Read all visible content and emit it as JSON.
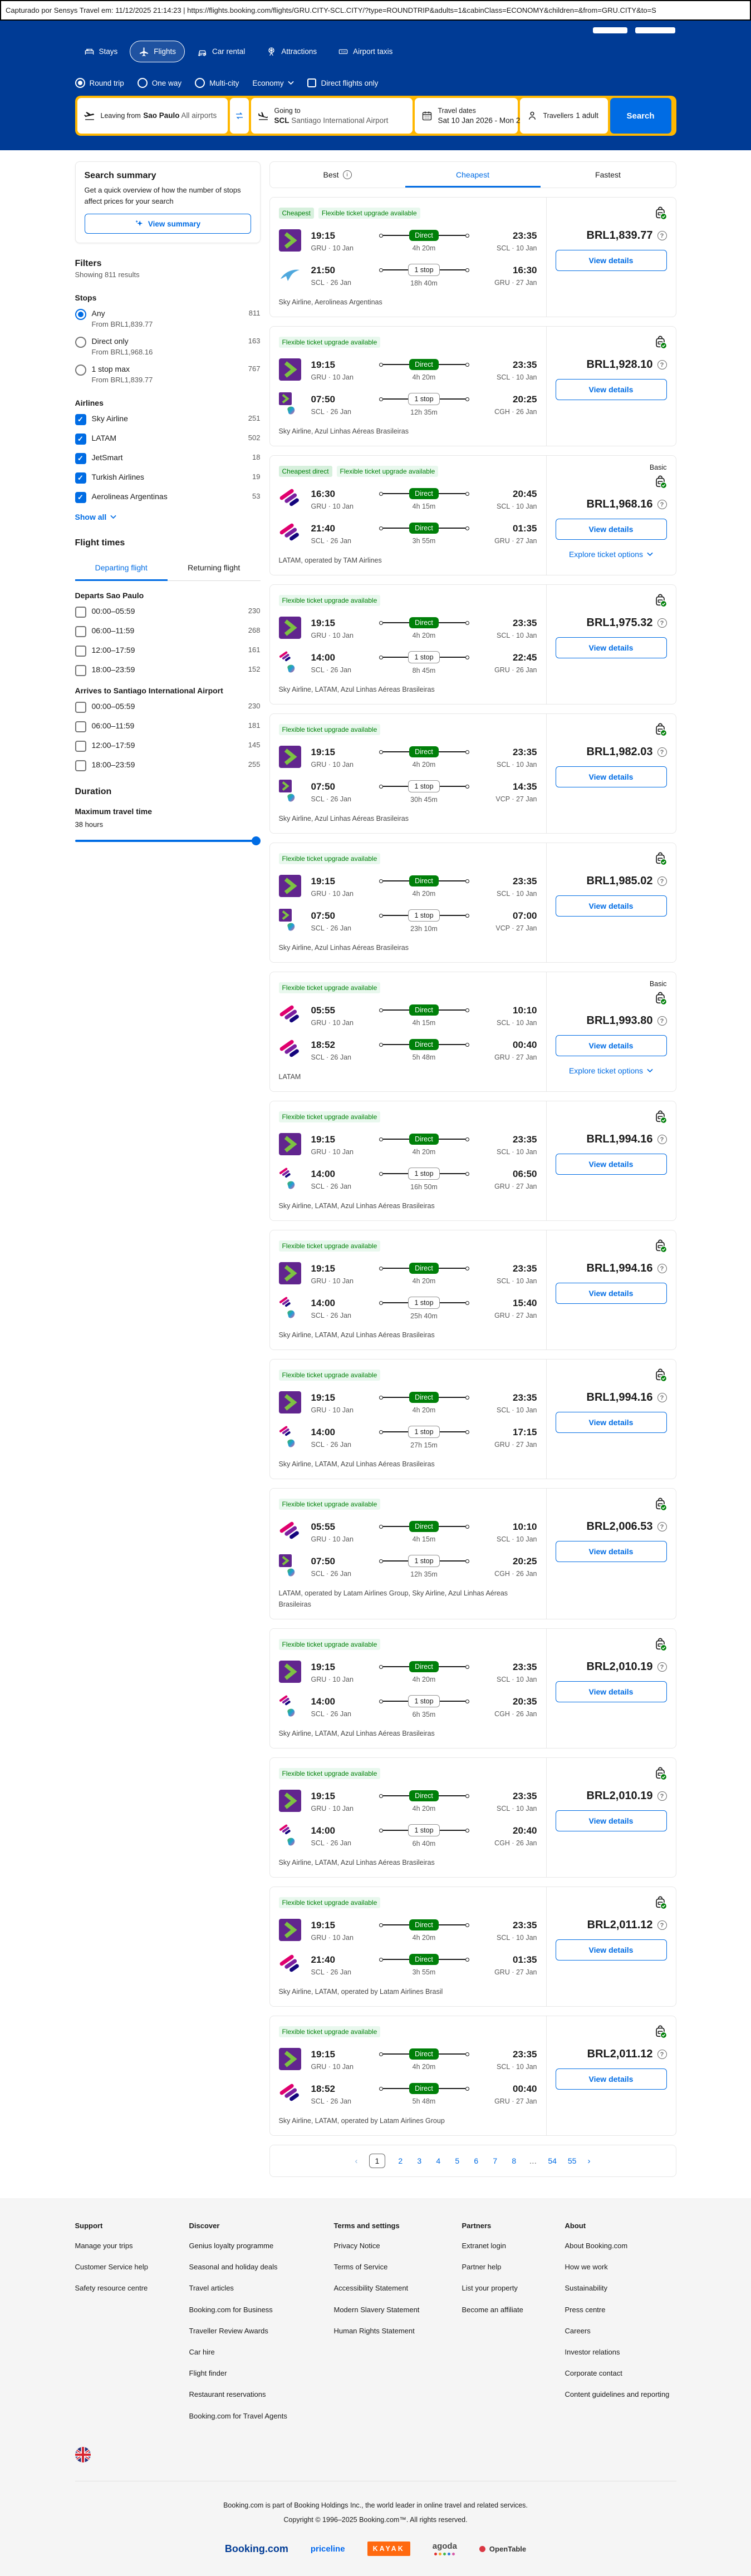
{
  "capture_bar": {
    "text": "Capturado por Sensys Travel em: 11/12/2025 21:14:23  |  https://flights.booking.com/flights/GRU.CITY-SCL.CITY/?type=ROUNDTRIP&adults=1&cabinClass=ECONOMY&children=&from=GRU.CITY&to=S"
  },
  "header": {
    "nav": [
      {
        "label": "Stays",
        "icon": "bed-icon",
        "active": false
      },
      {
        "label": "Flights",
        "icon": "plane-icon",
        "active": true
      },
      {
        "label": "Car rental",
        "icon": "car-icon",
        "active": false
      },
      {
        "label": "Attractions",
        "icon": "attractions-icon",
        "active": false
      },
      {
        "label": "Airport taxis",
        "icon": "taxi-icon",
        "active": false
      }
    ]
  },
  "search_form": {
    "trip_types": [
      {
        "label": "Round trip",
        "selected": true
      },
      {
        "label": "One way",
        "selected": false
      },
      {
        "label": "Multi-city",
        "selected": false
      }
    ],
    "cabin_class": "Economy",
    "direct_only_label": "Direct flights only",
    "leaving_from": {
      "label": "Leaving from",
      "value_bold": "Sao Paulo",
      "value_rest": " All airports"
    },
    "going_to": {
      "label": "Going to",
      "value_bold": "SCL",
      "value_rest": " Santiago International Airport"
    },
    "travel_dates": {
      "label": "Travel dates",
      "value": "Sat 10 Jan 2026 - Mon 2..."
    },
    "travellers": {
      "label": "Travellers",
      "value": "1 adult"
    },
    "search_button": "Search"
  },
  "sidebar": {
    "summary": {
      "title": "Search summary",
      "description": "Get a quick overview of how the number of stops affect prices for your search",
      "button": "View summary"
    },
    "filters_title": "Filters",
    "showing": "Showing 811 results",
    "stops": {
      "title": "Stops",
      "options": [
        {
          "label": "Any",
          "count": "811",
          "from": "From BRL1,839.77",
          "selected": true
        },
        {
          "label": "Direct only",
          "count": "163",
          "from": "From BRL1,968.16",
          "selected": false
        },
        {
          "label": "1 stop max",
          "count": "767",
          "from": "From BRL1,839.77",
          "selected": false
        }
      ]
    },
    "airlines": {
      "title": "Airlines",
      "show_all": "Show all",
      "options": [
        {
          "label": "Sky Airline",
          "count": "251",
          "checked": true
        },
        {
          "label": "LATAM",
          "count": "502",
          "checked": true
        },
        {
          "label": "JetSmart",
          "count": "18",
          "checked": true
        },
        {
          "label": "Turkish Airlines",
          "count": "19",
          "checked": true
        },
        {
          "label": "Aerolineas Argentinas",
          "count": "53",
          "checked": true
        }
      ]
    },
    "flight_times": {
      "title": "Flight times",
      "tabs": [
        {
          "label": "Departing flight",
          "active": true
        },
        {
          "label": "Returning flight",
          "active": false
        }
      ],
      "groups": [
        {
          "title": "Departs Sao Paulo",
          "options": [
            {
              "label": "00:00–05:59",
              "count": "230"
            },
            {
              "label": "06:00–11:59",
              "count": "268"
            },
            {
              "label": "12:00–17:59",
              "count": "161"
            },
            {
              "label": "18:00–23:59",
              "count": "152"
            }
          ]
        },
        {
          "title": "Arrives to Santiago International Airport",
          "options": [
            {
              "label": "00:00–05:59",
              "count": "230"
            },
            {
              "label": "06:00–11:59",
              "count": "181"
            },
            {
              "label": "12:00–17:59",
              "count": "145"
            },
            {
              "label": "18:00–23:59",
              "count": "255"
            }
          ]
        }
      ]
    },
    "duration": {
      "title": "Duration",
      "label": "Maximum travel time",
      "value": "38 hours"
    }
  },
  "results": {
    "tabs": [
      {
        "label": "Best",
        "active": false,
        "info": true
      },
      {
        "label": "Cheapest",
        "active": true,
        "info": false
      },
      {
        "label": "Fastest",
        "active": false,
        "info": false
      }
    ],
    "view_details_label": "View details",
    "explore_label": "Explore ticket options",
    "basic_label": "Basic",
    "logo_names": {
      "sky": "sky-airline-logo",
      "latam": "latam-logo",
      "ar": "aerolineas-argentinas-logo",
      "azul": "azul-logo"
    },
    "cards": [
      {
        "badges": [
          "Cheapest",
          "Flexible ticket upgrade available"
        ],
        "basic": false,
        "explore": false,
        "price": "BRL1,839.77",
        "carriers": "Sky Airline, Aerolineas Argentinas",
        "legs": [
          {
            "logos": [
              "sky"
            ],
            "dep": "19:15",
            "dep_meta": "GRU · 10 Jan",
            "stop": "Direct",
            "dur": "4h 20m",
            "arr": "23:35",
            "arr_meta": "SCL · 10 Jan"
          },
          {
            "logos": [
              "ar"
            ],
            "dep": "21:50",
            "dep_meta": "SCL · 26 Jan",
            "stop": "1 stop",
            "dur": "18h 40m",
            "arr": "16:30",
            "arr_meta": "GRU · 27 Jan"
          }
        ]
      },
      {
        "badges": [
          "Flexible ticket upgrade available"
        ],
        "basic": false,
        "explore": false,
        "price": "BRL1,928.10",
        "carriers": "Sky Airline, Azul Linhas Aéreas Brasileiras",
        "legs": [
          {
            "logos": [
              "sky"
            ],
            "dep": "19:15",
            "dep_meta": "GRU · 10 Jan",
            "stop": "Direct",
            "dur": "4h 20m",
            "arr": "23:35",
            "arr_meta": "SCL · 10 Jan"
          },
          {
            "logos": [
              "sky",
              "azul"
            ],
            "dep": "07:50",
            "dep_meta": "SCL · 26 Jan",
            "stop": "1 stop",
            "dur": "12h 35m",
            "arr": "20:25",
            "arr_meta": "CGH · 26 Jan"
          }
        ]
      },
      {
        "badges": [
          "Cheapest direct",
          "Flexible ticket upgrade available"
        ],
        "basic": true,
        "explore": true,
        "price": "BRL1,968.16",
        "carriers": "LATAM, operated by TAM Airlines",
        "legs": [
          {
            "logos": [
              "latam"
            ],
            "dep": "16:30",
            "dep_meta": "GRU · 10 Jan",
            "stop": "Direct",
            "dur": "4h 15m",
            "arr": "20:45",
            "arr_meta": "SCL · 10 Jan"
          },
          {
            "logos": [
              "latam"
            ],
            "dep": "21:40",
            "dep_meta": "SCL · 26 Jan",
            "stop": "Direct",
            "dur": "3h 55m",
            "arr": "01:35",
            "arr_meta": "GRU · 27 Jan"
          }
        ]
      },
      {
        "badges": [
          "Flexible ticket upgrade available"
        ],
        "basic": false,
        "explore": false,
        "price": "BRL1,975.32",
        "carriers": "Sky Airline, LATAM, Azul Linhas Aéreas Brasileiras",
        "legs": [
          {
            "logos": [
              "sky"
            ],
            "dep": "19:15",
            "dep_meta": "GRU · 10 Jan",
            "stop": "Direct",
            "dur": "4h 20m",
            "arr": "23:35",
            "arr_meta": "SCL · 10 Jan"
          },
          {
            "logos": [
              "latam",
              "azul"
            ],
            "dep": "14:00",
            "dep_meta": "SCL · 26 Jan",
            "stop": "1 stop",
            "dur": "8h 45m",
            "arr": "22:45",
            "arr_meta": "GRU · 26 Jan"
          }
        ]
      },
      {
        "badges": [
          "Flexible ticket upgrade available"
        ],
        "basic": false,
        "explore": false,
        "price": "BRL1,982.03",
        "carriers": "Sky Airline, Azul Linhas Aéreas Brasileiras",
        "legs": [
          {
            "logos": [
              "sky"
            ],
            "dep": "19:15",
            "dep_meta": "GRU · 10 Jan",
            "stop": "Direct",
            "dur": "4h 20m",
            "arr": "23:35",
            "arr_meta": "SCL · 10 Jan"
          },
          {
            "logos": [
              "sky",
              "azul"
            ],
            "dep": "07:50",
            "dep_meta": "SCL · 26 Jan",
            "stop": "1 stop",
            "dur": "30h 45m",
            "arr": "14:35",
            "arr_meta": "VCP · 27 Jan"
          }
        ]
      },
      {
        "badges": [
          "Flexible ticket upgrade available"
        ],
        "basic": false,
        "explore": false,
        "price": "BRL1,985.02",
        "carriers": "Sky Airline, Azul Linhas Aéreas Brasileiras",
        "legs": [
          {
            "logos": [
              "sky"
            ],
            "dep": "19:15",
            "dep_meta": "GRU · 10 Jan",
            "stop": "Direct",
            "dur": "4h 20m",
            "arr": "23:35",
            "arr_meta": "SCL · 10 Jan"
          },
          {
            "logos": [
              "sky",
              "azul"
            ],
            "dep": "07:50",
            "dep_meta": "SCL · 26 Jan",
            "stop": "1 stop",
            "dur": "23h 10m",
            "arr": "07:00",
            "arr_meta": "VCP · 27 Jan"
          }
        ]
      },
      {
        "badges": [
          "Flexible ticket upgrade available"
        ],
        "basic": true,
        "explore": true,
        "price": "BRL1,993.80",
        "carriers": "LATAM",
        "legs": [
          {
            "logos": [
              "latam"
            ],
            "dep": "05:55",
            "dep_meta": "GRU · 10 Jan",
            "stop": "Direct",
            "dur": "4h 15m",
            "arr": "10:10",
            "arr_meta": "SCL · 10 Jan"
          },
          {
            "logos": [
              "latam"
            ],
            "dep": "18:52",
            "dep_meta": "SCL · 26 Jan",
            "stop": "Direct",
            "dur": "5h 48m",
            "arr": "00:40",
            "arr_meta": "GRU · 27 Jan"
          }
        ]
      },
      {
        "badges": [
          "Flexible ticket upgrade available"
        ],
        "basic": false,
        "explore": false,
        "price": "BRL1,994.16",
        "carriers": "Sky Airline, LATAM, Azul Linhas Aéreas Brasileiras",
        "legs": [
          {
            "logos": [
              "sky"
            ],
            "dep": "19:15",
            "dep_meta": "GRU · 10 Jan",
            "stop": "Direct",
            "dur": "4h 20m",
            "arr": "23:35",
            "arr_meta": "SCL · 10 Jan"
          },
          {
            "logos": [
              "latam",
              "azul"
            ],
            "dep": "14:00",
            "dep_meta": "SCL · 26 Jan",
            "stop": "1 stop",
            "dur": "16h 50m",
            "arr": "06:50",
            "arr_meta": "GRU · 27 Jan"
          }
        ]
      },
      {
        "badges": [
          "Flexible ticket upgrade available"
        ],
        "basic": false,
        "explore": false,
        "price": "BRL1,994.16",
        "carriers": "Sky Airline, LATAM, Azul Linhas Aéreas Brasileiras",
        "legs": [
          {
            "logos": [
              "sky"
            ],
            "dep": "19:15",
            "dep_meta": "GRU · 10 Jan",
            "stop": "Direct",
            "dur": "4h 20m",
            "arr": "23:35",
            "arr_meta": "SCL · 10 Jan"
          },
          {
            "logos": [
              "latam",
              "azul"
            ],
            "dep": "14:00",
            "dep_meta": "SCL · 26 Jan",
            "stop": "1 stop",
            "dur": "25h 40m",
            "arr": "15:40",
            "arr_meta": "GRU · 27 Jan"
          }
        ]
      },
      {
        "badges": [
          "Flexible ticket upgrade available"
        ],
        "basic": false,
        "explore": false,
        "price": "BRL1,994.16",
        "carriers": "Sky Airline, LATAM, Azul Linhas Aéreas Brasileiras",
        "legs": [
          {
            "logos": [
              "sky"
            ],
            "dep": "19:15",
            "dep_meta": "GRU · 10 Jan",
            "stop": "Direct",
            "dur": "4h 20m",
            "arr": "23:35",
            "arr_meta": "SCL · 10 Jan"
          },
          {
            "logos": [
              "latam",
              "azul"
            ],
            "dep": "14:00",
            "dep_meta": "SCL · 26 Jan",
            "stop": "1 stop",
            "dur": "27h 15m",
            "arr": "17:15",
            "arr_meta": "GRU · 27 Jan"
          }
        ]
      },
      {
        "badges": [
          "Flexible ticket upgrade available"
        ],
        "basic": false,
        "explore": false,
        "price": "BRL2,006.53",
        "carriers": "LATAM, operated by Latam Airlines Group, Sky Airline, Azul Linhas Aéreas Brasileiras",
        "legs": [
          {
            "logos": [
              "latam"
            ],
            "dep": "05:55",
            "dep_meta": "GRU · 10 Jan",
            "stop": "Direct",
            "dur": "4h 15m",
            "arr": "10:10",
            "arr_meta": "SCL · 10 Jan"
          },
          {
            "logos": [
              "sky",
              "azul"
            ],
            "dep": "07:50",
            "dep_meta": "SCL · 26 Jan",
            "stop": "1 stop",
            "dur": "12h 35m",
            "arr": "20:25",
            "arr_meta": "CGH · 26 Jan"
          }
        ]
      },
      {
        "badges": [
          "Flexible ticket upgrade available"
        ],
        "basic": false,
        "explore": false,
        "price": "BRL2,010.19",
        "carriers": "Sky Airline, LATAM, Azul Linhas Aéreas Brasileiras",
        "legs": [
          {
            "logos": [
              "sky"
            ],
            "dep": "19:15",
            "dep_meta": "GRU · 10 Jan",
            "stop": "Direct",
            "dur": "4h 20m",
            "arr": "23:35",
            "arr_meta": "SCL · 10 Jan"
          },
          {
            "logos": [
              "latam",
              "azul"
            ],
            "dep": "14:00",
            "dep_meta": "SCL · 26 Jan",
            "stop": "1 stop",
            "dur": "6h 35m",
            "arr": "20:35",
            "arr_meta": "CGH · 26 Jan"
          }
        ]
      },
      {
        "badges": [
          "Flexible ticket upgrade available"
        ],
        "basic": false,
        "explore": false,
        "price": "BRL2,010.19",
        "carriers": "Sky Airline, LATAM, Azul Linhas Aéreas Brasileiras",
        "legs": [
          {
            "logos": [
              "sky"
            ],
            "dep": "19:15",
            "dep_meta": "GRU · 10 Jan",
            "stop": "Direct",
            "dur": "4h 20m",
            "arr": "23:35",
            "arr_meta": "SCL · 10 Jan"
          },
          {
            "logos": [
              "latam",
              "azul"
            ],
            "dep": "14:00",
            "dep_meta": "SCL · 26 Jan",
            "stop": "1 stop",
            "dur": "6h 40m",
            "arr": "20:40",
            "arr_meta": "CGH · 26 Jan"
          }
        ]
      },
      {
        "badges": [
          "Flexible ticket upgrade available"
        ],
        "basic": false,
        "explore": false,
        "price": "BRL2,011.12",
        "carriers": "Sky Airline, LATAM, operated by Latam Airlines Brasil",
        "legs": [
          {
            "logos": [
              "sky"
            ],
            "dep": "19:15",
            "dep_meta": "GRU · 10 Jan",
            "stop": "Direct",
            "dur": "4h 20m",
            "arr": "23:35",
            "arr_meta": "SCL · 10 Jan"
          },
          {
            "logos": [
              "latam"
            ],
            "dep": "21:40",
            "dep_meta": "SCL · 26 Jan",
            "stop": "Direct",
            "dur": "3h 55m",
            "arr": "01:35",
            "arr_meta": "GRU · 27 Jan"
          }
        ]
      },
      {
        "badges": [
          "Flexible ticket upgrade available"
        ],
        "basic": false,
        "explore": false,
        "price": "BRL2,011.12",
        "carriers": "Sky Airline, LATAM, operated by Latam Airlines Group",
        "legs": [
          {
            "logos": [
              "sky"
            ],
            "dep": "19:15",
            "dep_meta": "GRU · 10 Jan",
            "stop": "Direct",
            "dur": "4h 20m",
            "arr": "23:35",
            "arr_meta": "SCL · 10 Jan"
          },
          {
            "logos": [
              "latam"
            ],
            "dep": "18:52",
            "dep_meta": "SCL · 26 Jan",
            "stop": "Direct",
            "dur": "5h 48m",
            "arr": "00:40",
            "arr_meta": "GRU · 27 Jan"
          }
        ]
      }
    ],
    "pagination": {
      "prev": "‹",
      "next": "›",
      "pages": [
        "1",
        "2",
        "3",
        "4",
        "5",
        "6",
        "7",
        "8",
        "…",
        "54",
        "55"
      ],
      "current": "1"
    }
  },
  "footer": {
    "columns": [
      {
        "title": "Support",
        "links": [
          "Manage your trips",
          "Customer Service help",
          "Safety resource centre"
        ]
      },
      {
        "title": "Discover",
        "links": [
          "Genius loyalty programme",
          "Seasonal and holiday deals",
          "Travel articles",
          "Booking.com for Business",
          "Traveller Review Awards",
          "Car hire",
          "Flight finder",
          "Restaurant reservations",
          "Booking.com for Travel Agents"
        ]
      },
      {
        "title": "Terms and settings",
        "links": [
          "Privacy Notice",
          "Terms of Service",
          "Accessibility Statement",
          "Modern Slavery Statement",
          "Human Rights Statement"
        ]
      },
      {
        "title": "Partners",
        "links": [
          "Extranet login",
          "Partner help",
          "List your property",
          "Become an affiliate"
        ]
      },
      {
        "title": "About",
        "links": [
          "About Booking.com",
          "How we work",
          "Sustainability",
          "Press centre",
          "Careers",
          "Investor relations",
          "Corporate contact",
          "Content guidelines and reporting"
        ]
      }
    ],
    "legal1": "Booking.com is part of Booking Holdings Inc., the world leader in online travel and related services.",
    "legal2": "Copyright © 1996–2025 Booking.com™. All rights reserved.",
    "brands": [
      "Booking.com",
      "priceline",
      "KAYAK",
      "agoda",
      "OpenTable"
    ]
  },
  "colors": {
    "brand_blue": "#003b95",
    "action_blue": "#006ce4",
    "search_yellow": "#ffb700",
    "success_green": "#008009"
  }
}
